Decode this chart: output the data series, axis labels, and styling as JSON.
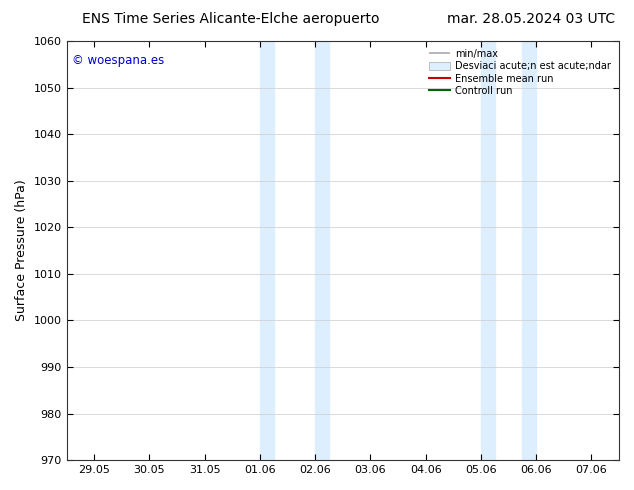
{
  "title_left": "ENS Time Series Alicante-Elche aeropuerto",
  "title_right": "mar. 28.05.2024 03 UTC",
  "ylabel": "Surface Pressure (hPa)",
  "ylim": [
    970,
    1060
  ],
  "yticks": [
    970,
    980,
    990,
    1000,
    1010,
    1020,
    1030,
    1040,
    1050,
    1060
  ],
  "xtick_labels": [
    "29.05",
    "30.05",
    "31.05",
    "01.06",
    "02.06",
    "03.06",
    "04.06",
    "05.06",
    "06.06",
    "07.06"
  ],
  "xtick_positions": [
    0,
    1,
    2,
    3,
    4,
    5,
    6,
    7,
    8,
    9
  ],
  "shaded_regions": [
    {
      "xmin": 3.0,
      "xmax": 3.25,
      "color": "#ddeeff"
    },
    {
      "xmin": 4.0,
      "xmax": 4.25,
      "color": "#ddeeff"
    },
    {
      "xmin": 7.0,
      "xmax": 7.25,
      "color": "#ddeeff"
    },
    {
      "xmin": 7.75,
      "xmax": 8.0,
      "color": "#ddeeff"
    }
  ],
  "watermark_text": "© woespana.es",
  "watermark_color": "#0000cc",
  "background_color": "#ffffff",
  "legend_line1_label": "min/max",
  "legend_line2_label": "Desviaci acute;n est acute;ndar",
  "legend_line3_label": "Ensemble mean run",
  "legend_line4_label": "Controll run",
  "legend_color_gray": "#aaaaaa",
  "legend_color_blue": "#ddeeff",
  "legend_color_red": "#cc0000",
  "legend_color_green": "#006600",
  "title_fontsize": 10,
  "legend_fontsize": 7,
  "ylabel_fontsize": 9,
  "tick_fontsize": 8,
  "grid_color": "#cccccc",
  "spine_color": "#333333"
}
